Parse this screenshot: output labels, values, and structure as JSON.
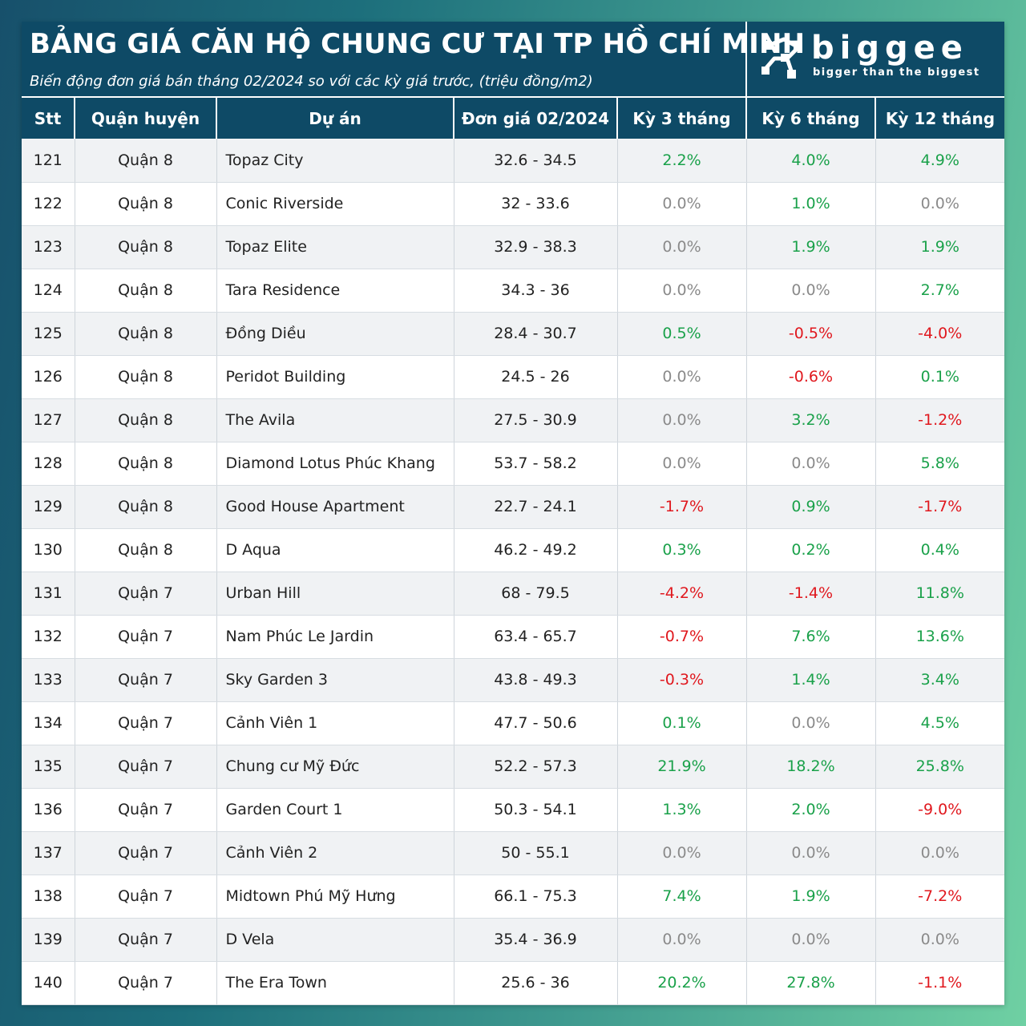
{
  "header": {
    "title": "BẢNG GIÁ CĂN HỘ CHUNG CƯ TẠI TP HỒ CHÍ MINH",
    "subtitle": "Biến động đơn giá bán tháng 02/2024 so với các kỳ giá trước, (triệu đồng/m2)"
  },
  "logo": {
    "word": "biggee",
    "tagline": "bigger than the biggest"
  },
  "colors": {
    "header_bg": "#0e4a66",
    "positive": "#1aa14a",
    "negative": "#e0181e",
    "zero": "#8a8a8a"
  },
  "chart_data": {
    "type": "table",
    "title": "BẢNG GIÁ CĂN HỘ CHUNG CƯ TẠI TP HỒ CHÍ MINH",
    "subtitle": "Biến động đơn giá bán tháng 02/2024 so với các kỳ giá trước, (triệu đồng/m2)",
    "columns": [
      "Stt",
      "Quận huyện",
      "Dự án",
      "Đơn giá 02/2024",
      "Kỳ 3 tháng",
      "Kỳ 6 tháng",
      "Kỳ 12 tháng"
    ],
    "rows": [
      [
        "121",
        "Quận 8",
        "Topaz City",
        "32.6 - 34.5",
        "2.2%",
        "4.0%",
        "4.9%"
      ],
      [
        "122",
        "Quận 8",
        "Conic Riverside",
        "32 - 33.6",
        "0.0%",
        "1.0%",
        "0.0%"
      ],
      [
        "123",
        "Quận 8",
        "Topaz Elite",
        "32.9 - 38.3",
        "0.0%",
        "1.9%",
        "1.9%"
      ],
      [
        "124",
        "Quận 8",
        "Tara Residence",
        "34.3 - 36",
        "0.0%",
        "0.0%",
        "2.7%"
      ],
      [
        "125",
        "Quận 8",
        "Đồng Diều",
        "28.4 - 30.7",
        "0.5%",
        "-0.5%",
        "-4.0%"
      ],
      [
        "126",
        "Quận 8",
        "Peridot Building",
        "24.5 - 26",
        "0.0%",
        "-0.6%",
        "0.1%"
      ],
      [
        "127",
        "Quận 8",
        "The Avila",
        "27.5 - 30.9",
        "0.0%",
        "3.2%",
        "-1.2%"
      ],
      [
        "128",
        "Quận 8",
        "Diamond Lotus Phúc Khang",
        "53.7 - 58.2",
        "0.0%",
        "0.0%",
        "5.8%"
      ],
      [
        "129",
        "Quận 8",
        "Good House Apartment",
        "22.7 - 24.1",
        "-1.7%",
        "0.9%",
        "-1.7%"
      ],
      [
        "130",
        "Quận 8",
        "D Aqua",
        "46.2 - 49.2",
        "0.3%",
        "0.2%",
        "0.4%"
      ],
      [
        "131",
        "Quận 7",
        "Urban Hill",
        "68 - 79.5",
        "-4.2%",
        "-1.4%",
        "11.8%"
      ],
      [
        "132",
        "Quận 7",
        "Nam Phúc Le Jardin",
        "63.4 - 65.7",
        "-0.7%",
        "7.6%",
        "13.6%"
      ],
      [
        "133",
        "Quận 7",
        "Sky Garden 3",
        "43.8 - 49.3",
        "-0.3%",
        "1.4%",
        "3.4%"
      ],
      [
        "134",
        "Quận 7",
        "Cảnh Viên 1",
        "47.7 - 50.6",
        "0.1%",
        "0.0%",
        "4.5%"
      ],
      [
        "135",
        "Quận 7",
        "Chung cư Mỹ Đức",
        "52.2 - 57.3",
        "21.9%",
        "18.2%",
        "25.8%"
      ],
      [
        "136",
        "Quận 7",
        "Garden Court 1",
        "50.3 - 54.1",
        "1.3%",
        "2.0%",
        "-9.0%"
      ],
      [
        "137",
        "Quận 7",
        "Cảnh Viên 2",
        "50 - 55.1",
        "0.0%",
        "0.0%",
        "0.0%"
      ],
      [
        "138",
        "Quận 7",
        "Midtown Phú Mỹ Hưng",
        "66.1 - 75.3",
        "7.4%",
        "1.9%",
        "-7.2%"
      ],
      [
        "139",
        "Quận 7",
        "D Vela",
        "35.4 - 36.9",
        "0.0%",
        "0.0%",
        "0.0%"
      ],
      [
        "140",
        "Quận 7",
        "The Era Town",
        "25.6 - 36",
        "20.2%",
        "27.8%",
        "-1.1%"
      ]
    ]
  }
}
